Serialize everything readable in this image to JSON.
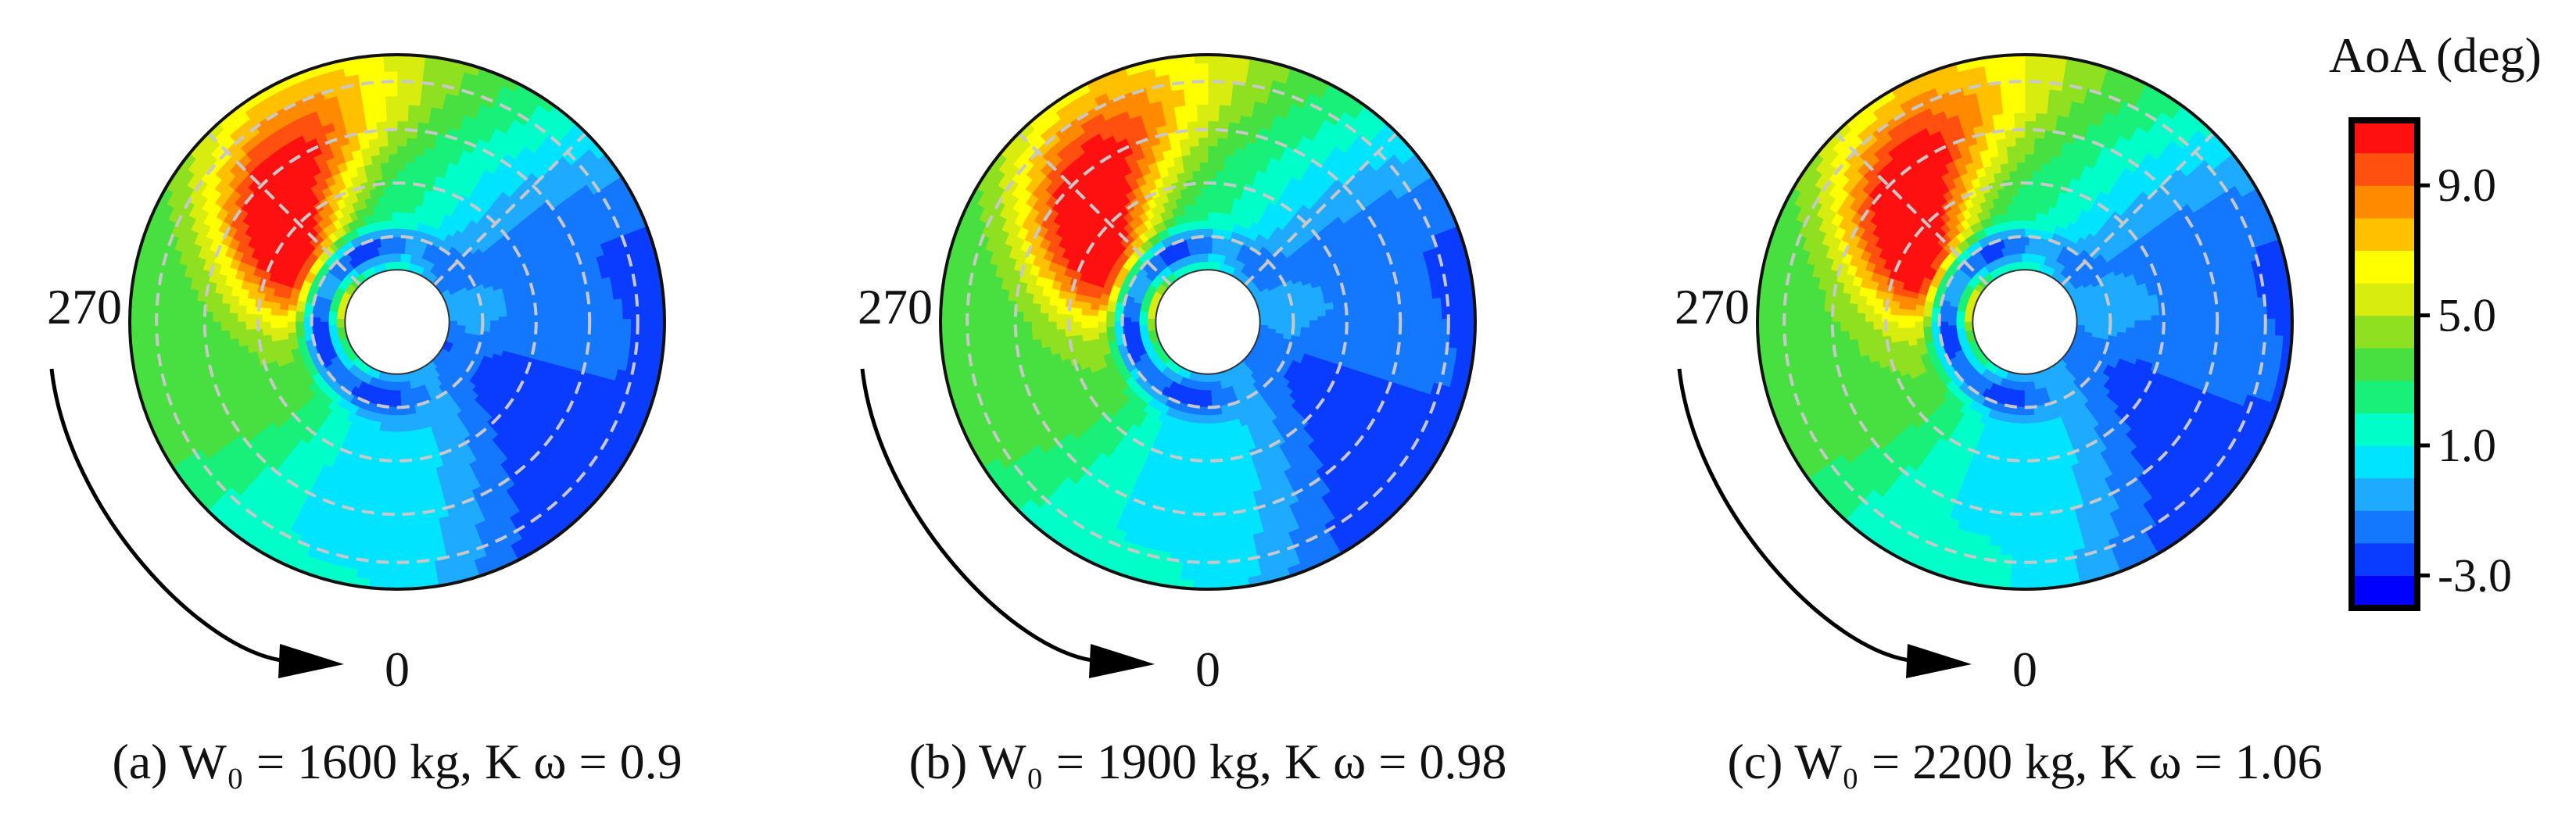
{
  "chart_data": {
    "type": "heatmap",
    "subtype": "polar-contour (rotor disk)",
    "colorbar": {
      "title": "AoA (deg)",
      "range": [
        -4.0,
        11.0
      ],
      "levels": 14,
      "tick_values": [
        9.0,
        5.0,
        1.0,
        -3.0
      ],
      "tick_labels": [
        "9.0",
        "5.0",
        "1.0",
        "-3.0"
      ],
      "colors": [
        "#0000ff",
        "#0a3cff",
        "#1478ff",
        "#1eaaff",
        "#00e4ff",
        "#00ffc8",
        "#18f07a",
        "#48e040",
        "#8ee020",
        "#d8ec10",
        "#ffff00",
        "#ffc000",
        "#ff8a00",
        "#ff5010",
        "#ff1010"
      ]
    },
    "azimuth_labels": [
      "270",
      "0"
    ],
    "rotation_direction": "clockwise (270 to 0)",
    "panels": [
      {
        "id": "a",
        "caption": "(a) W₀ = 1600 kg, K ω = 0.9",
        "W0_kg": 1600,
        "K_omega": 0.9
      },
      {
        "id": "b",
        "caption": "(b) W₀ = 1900 kg, K ω = 0.98",
        "W0_kg": 1900,
        "K_omega": 0.98
      },
      {
        "id": "c",
        "caption": "(c) W₀ = 2200 kg, K ω = 1.06",
        "W0_kg": 2200,
        "K_omega": 1.06
      }
    ],
    "field_features": [
      {
        "name": "max AoA region",
        "azimuth_deg": 290,
        "r_frac": 0.6,
        "value": 10.0
      },
      {
        "name": "min AoA region (root)",
        "azimuth_deg": 180,
        "r_frac": 0.28,
        "value": -3.5
      },
      {
        "name": "advancing side low",
        "azimuth_deg": 110,
        "r_frac": 0.85,
        "value": -1.0
      }
    ]
  },
  "labels": {
    "left_angle": "270",
    "bottom_angle": "0",
    "colorbar_title": "AoA (deg)"
  }
}
